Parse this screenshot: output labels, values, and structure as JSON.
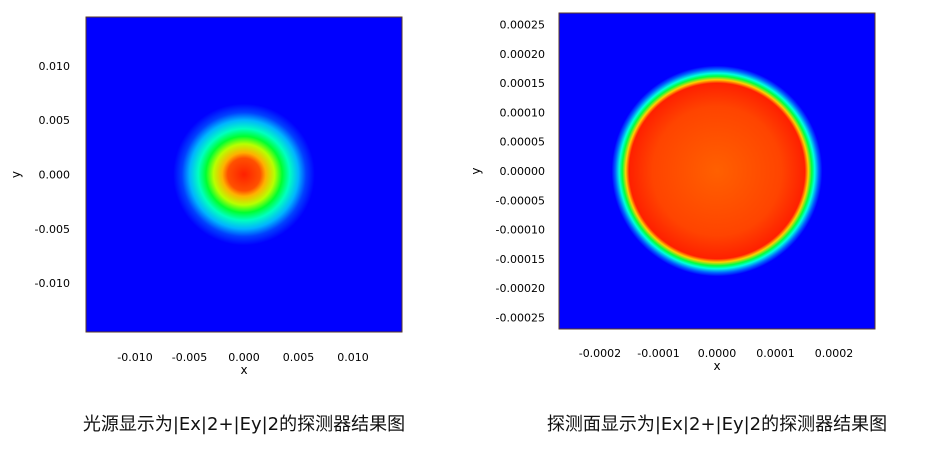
{
  "colors": {
    "background_field": "#0000ff",
    "frame": "#5a3a2a",
    "colormap": [
      "#0000ff",
      "#00ffff",
      "#00ff00",
      "#ffff00",
      "#ff0000"
    ]
  },
  "chart_data": [
    {
      "type": "heatmap",
      "title": "",
      "caption": "光源显示为|Ex|2+|Ey|2的探测器结果图",
      "xlabel": "x",
      "ylabel": "y",
      "xlim": [
        -0.0145,
        0.0145
      ],
      "ylim": [
        -0.0145,
        0.0145
      ],
      "xticks": [
        -0.01,
        -0.005,
        0.0,
        0.005,
        0.01
      ],
      "xtick_labels": [
        "-0.010",
        "-0.005",
        "0.000",
        "0.005",
        "0.010"
      ],
      "yticks": [
        0.01,
        0.005,
        0.0,
        -0.005,
        -0.01
      ],
      "ytick_labels": [
        "0.010",
        "0.005",
        "0.000",
        "-0.005",
        "-0.010"
      ],
      "field": {
        "shape": "gaussian-ring",
        "center": [
          0.0,
          0.0
        ],
        "color_stops": [
          {
            "r": 0.0,
            "color": "#ff2000"
          },
          {
            "r": 0.0015,
            "color": "#ff5000"
          },
          {
            "r": 0.002,
            "color": "#ffb000"
          },
          {
            "r": 0.0028,
            "color": "#b8ff00"
          },
          {
            "r": 0.0035,
            "color": "#00ff30"
          },
          {
            "r": 0.0042,
            "color": "#00ffc0"
          },
          {
            "r": 0.005,
            "color": "#00b4ff"
          },
          {
            "r": 0.0057,
            "color": "#0040ff"
          },
          {
            "r": 0.0065,
            "color": "#0000ff"
          }
        ]
      }
    },
    {
      "type": "heatmap",
      "title": "",
      "caption": "探测面显示为|Ex|2+|Ey|2的探测器结果图",
      "xlabel": "x",
      "ylabel": "y",
      "xlim": [
        -0.00027,
        0.00027
      ],
      "ylim": [
        -0.00027,
        0.00027
      ],
      "xticks": [
        -0.0002,
        -0.0001,
        0.0,
        0.0001,
        0.0002
      ],
      "xtick_labels": [
        "-0.0002",
        "-0.0001",
        "0.0000",
        "0.0001",
        "0.0002"
      ],
      "yticks": [
        0.00025,
        0.0002,
        0.00015,
        0.0001,
        5e-05,
        0.0,
        -5e-05,
        -0.0001,
        -0.00015,
        -0.0002,
        -0.00025
      ],
      "ytick_labels": [
        "0.00025",
        "0.00020",
        "0.00015",
        "0.00010",
        "0.00005",
        "0.00000",
        "-0.00005",
        "-0.00010",
        "-0.00015",
        "-0.00020",
        "-0.00025"
      ],
      "field": {
        "shape": "flat-top-disk",
        "center": [
          0.0,
          0.0
        ],
        "color_stops": [
          {
            "r": 0.0,
            "color": "#ff6000"
          },
          {
            "r": 0.00011,
            "color": "#ff4400"
          },
          {
            "r": 0.00015,
            "color": "#ff2000"
          },
          {
            "r": 0.000156,
            "color": "#ffd000"
          },
          {
            "r": 0.000162,
            "color": "#00ff40"
          },
          {
            "r": 0.000167,
            "color": "#00ffe0"
          },
          {
            "r": 0.000174,
            "color": "#0060ff"
          },
          {
            "r": 0.00018,
            "color": "#0000ff"
          }
        ]
      }
    }
  ]
}
